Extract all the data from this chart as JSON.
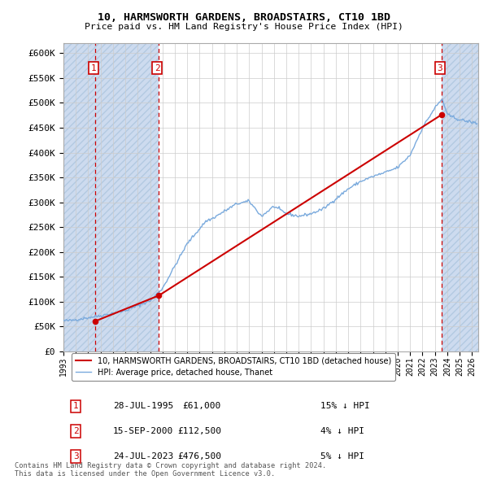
{
  "title": "10, HARMSWORTH GARDENS, BROADSTAIRS, CT10 1BD",
  "subtitle": "Price paid vs. HM Land Registry's House Price Index (HPI)",
  "sales": [
    {
      "date": "1995-07-28",
      "price": 61000,
      "label": "1",
      "year": 1995.577
    },
    {
      "date": "2000-09-15",
      "price": 112500,
      "label": "2",
      "year": 2000.708
    },
    {
      "date": "2023-07-24",
      "price": 476500,
      "label": "3",
      "year": 2023.56
    }
  ],
  "sale_pct": [
    "15% ↓ HPI",
    "4% ↓ HPI",
    "5% ↓ HPI"
  ],
  "sale_dates_display": [
    "28-JUL-1995",
    "15-SEP-2000",
    "24-JUL-2023"
  ],
  "sale_prices_display": [
    "£61,000",
    "£112,500",
    "£476,500"
  ],
  "hpi_color": "#7aaadd",
  "price_color": "#cc0000",
  "dashed_color": "#cc0000",
  "sale_label_color": "#cc0000",
  "grid_color": "#cccccc",
  "hatch_color": "#c8d8ee",
  "ylim": [
    0,
    620000
  ],
  "yticks": [
    0,
    50000,
    100000,
    150000,
    200000,
    250000,
    300000,
    350000,
    400000,
    450000,
    500000,
    550000,
    600000
  ],
  "xlim_start": 1993.0,
  "xlim_end": 2026.5,
  "legend_label_price": "10, HARMSWORTH GARDENS, BROADSTAIRS, CT10 1BD (detached house)",
  "legend_label_hpi": "HPI: Average price, detached house, Thanet",
  "footer": "Contains HM Land Registry data © Crown copyright and database right 2024.\nThis data is licensed under the Open Government Licence v3.0."
}
